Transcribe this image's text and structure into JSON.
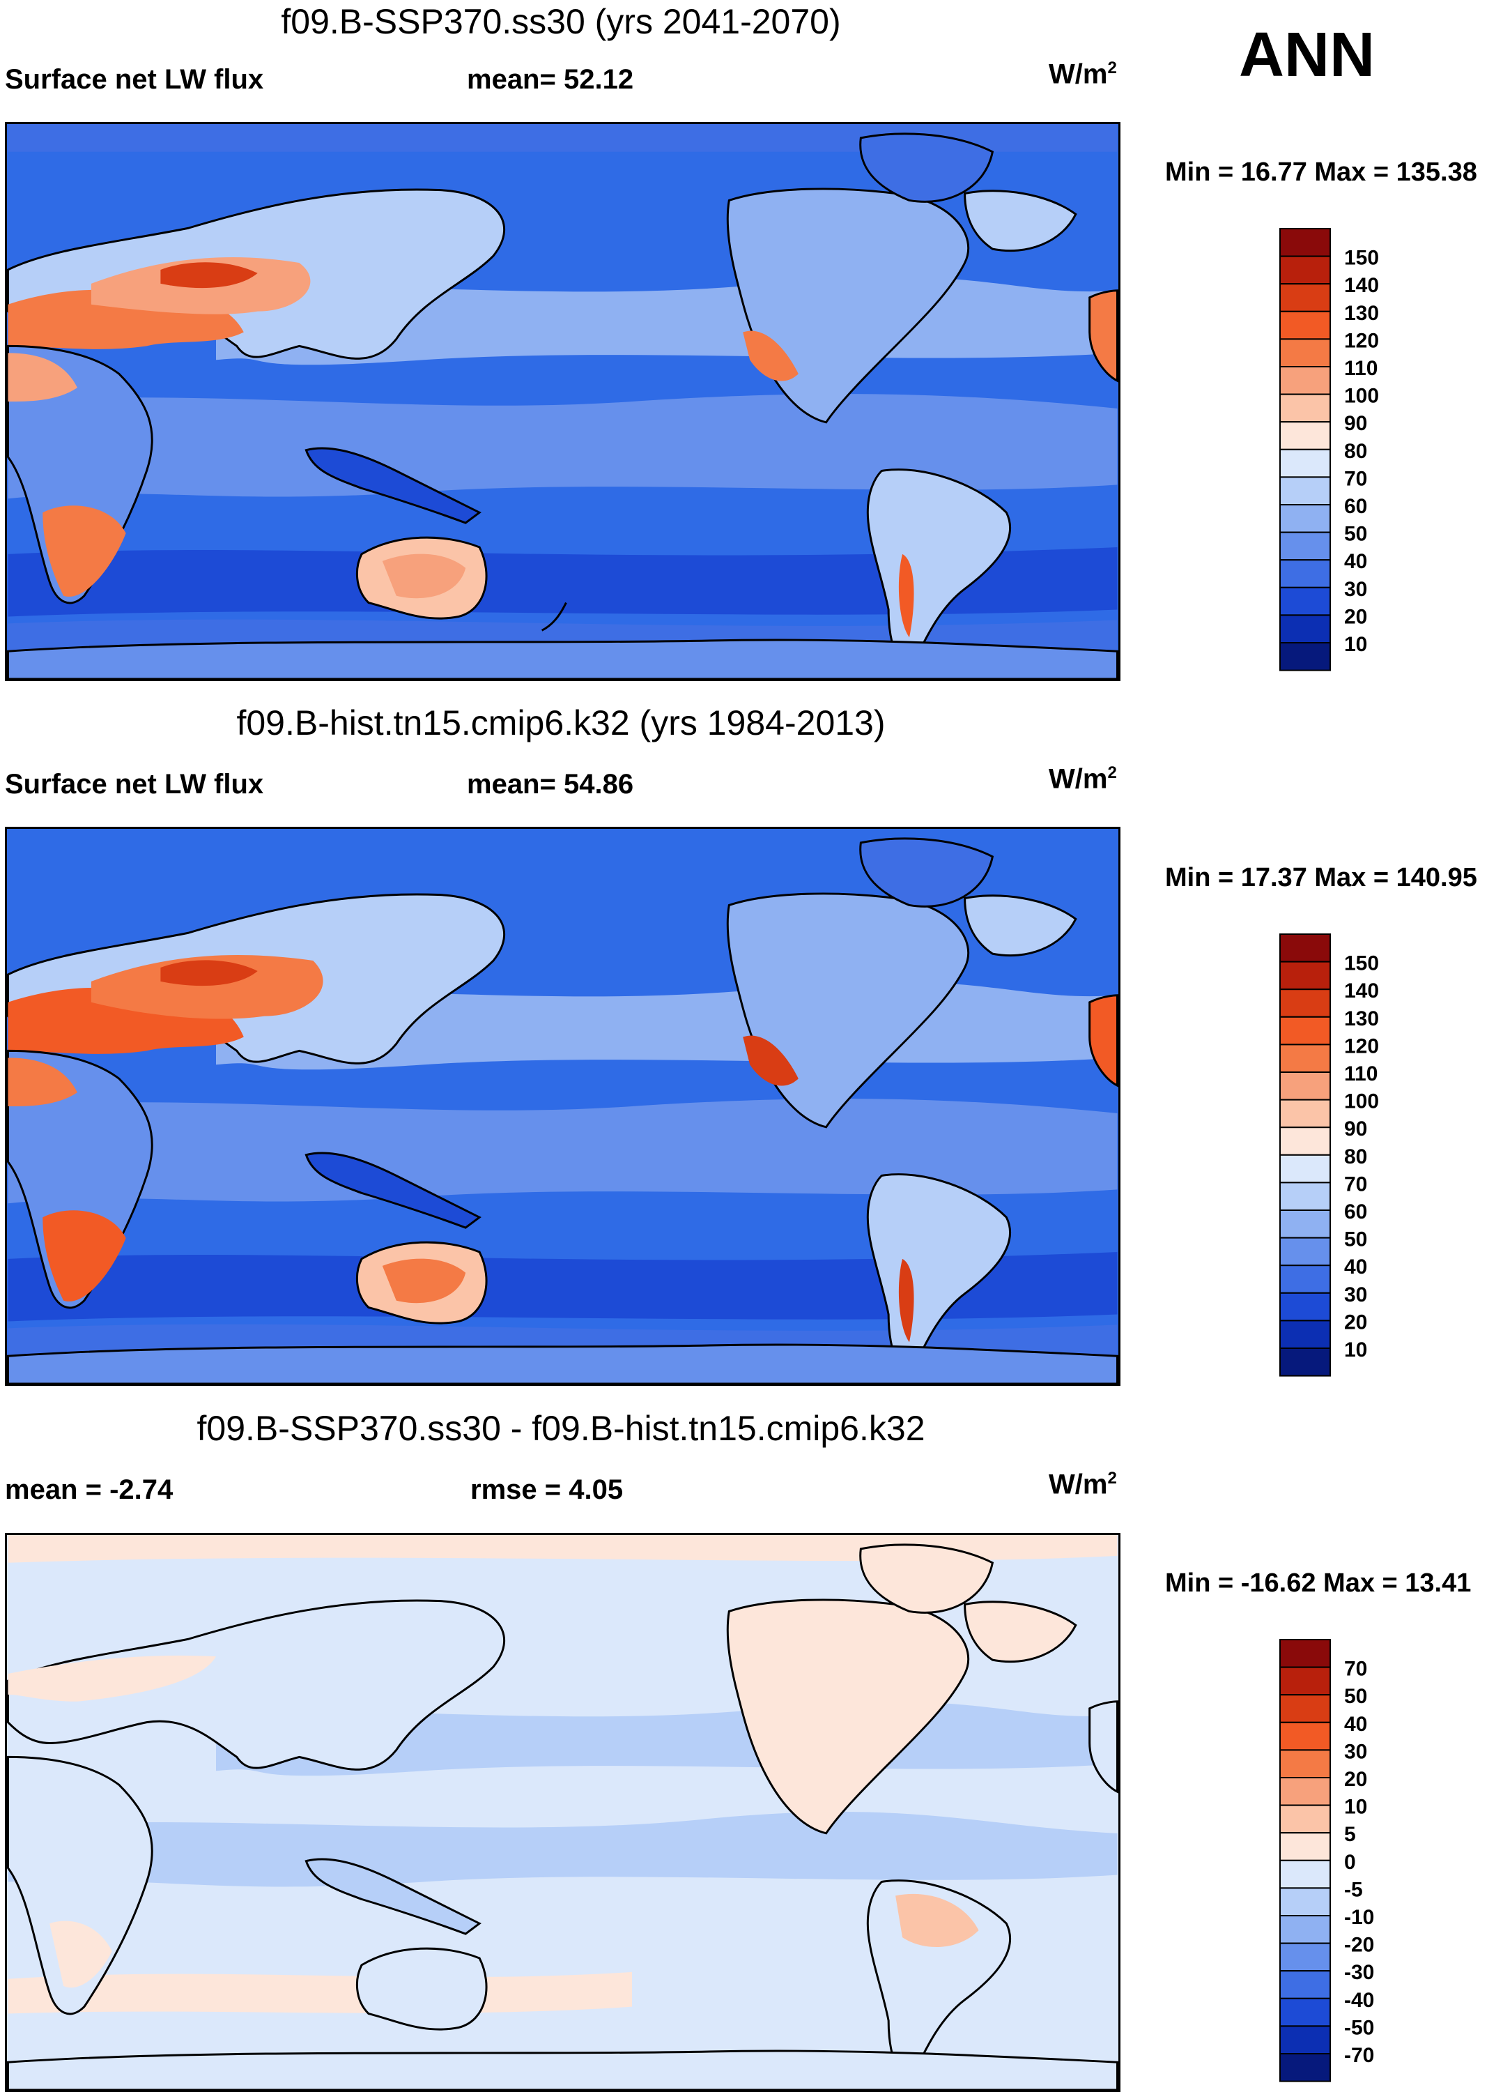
{
  "season": "ANN",
  "units_base": "W/m",
  "units_exp": "2",
  "panels": [
    {
      "id": "top",
      "title": "f09.B-SSP370.ss30 (yrs 2041-2070)",
      "left_label": "Surface net LW flux",
      "center_label": "mean=  52.12",
      "minmax": "Min =  16.77 Max = 135.38",
      "colorbar_labels": [
        "150",
        "140",
        "130",
        "120",
        "110",
        "100",
        "90",
        "80",
        "70",
        "60",
        "50",
        "40",
        "30",
        "20",
        "10"
      ],
      "colorbar_colors": [
        "#8a0a0a",
        "#b8200c",
        "#d93d14",
        "#f25a25",
        "#f47a45",
        "#f7a17c",
        "#fbc4a8",
        "#fde6da",
        "#dbe8fb",
        "#b6cff8",
        "#8fb1f2",
        "#6690ec",
        "#3e6ee4",
        "#1d4bd6",
        "#0c2fb3",
        "#06197c"
      ]
    },
    {
      "id": "middle",
      "title": "f09.B-hist.tn15.cmip6.k32 (yrs 1984-2013)",
      "left_label": "Surface net LW flux",
      "center_label": "mean=  54.86",
      "minmax": "Min =  17.37 Max = 140.95",
      "colorbar_labels": [
        "150",
        "140",
        "130",
        "120",
        "110",
        "100",
        "90",
        "80",
        "70",
        "60",
        "50",
        "40",
        "30",
        "20",
        "10"
      ],
      "colorbar_colors": [
        "#8a0a0a",
        "#b8200c",
        "#d93d14",
        "#f25a25",
        "#f47a45",
        "#f7a17c",
        "#fbc4a8",
        "#fde6da",
        "#dbe8fb",
        "#b6cff8",
        "#8fb1f2",
        "#6690ec",
        "#3e6ee4",
        "#1d4bd6",
        "#0c2fb3",
        "#06197c"
      ]
    },
    {
      "id": "bottom",
      "title": "f09.B-SSP370.ss30 - f09.B-hist.tn15.cmip6.k32",
      "left_label": "mean =  -2.74",
      "center_label": "rmse =    4.05",
      "minmax": "Min = -16.62 Max =  13.41",
      "colorbar_labels": [
        "70",
        "50",
        "40",
        "30",
        "20",
        "10",
        "5",
        "0",
        "-5",
        "-10",
        "-20",
        "-30",
        "-40",
        "-50",
        "-70"
      ],
      "colorbar_colors": [
        "#8a0a0a",
        "#b8200c",
        "#d93d14",
        "#f25a25",
        "#f47a45",
        "#f7a17c",
        "#fbc4a8",
        "#fde6da",
        "#dbe8fb",
        "#b6cff8",
        "#8fb1f2",
        "#6690ec",
        "#3e6ee4",
        "#1d4bd6",
        "#0c2fb3",
        "#06197c"
      ]
    }
  ]
}
